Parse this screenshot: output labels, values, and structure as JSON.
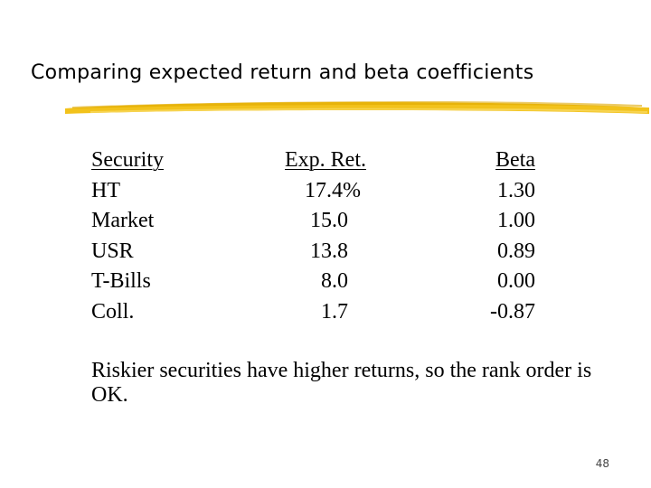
{
  "slide": {
    "title": "Comparing expected return and beta coefficients",
    "accent_color": "#f2c21b",
    "page_number": "48"
  },
  "table": {
    "headers": {
      "security": "Security",
      "expected_return": "Exp. Ret.",
      "beta": "Beta"
    },
    "rows": [
      {
        "security": "HT",
        "expected_return": "17.4%",
        "beta": "1.30"
      },
      {
        "security": "Market",
        "expected_return": "15.0",
        "beta": "1.00"
      },
      {
        "security": "USR",
        "expected_return": "13.8",
        "beta": "0.89"
      },
      {
        "security": "T-Bills",
        "expected_return": "8.0",
        "beta": "0.00"
      },
      {
        "security": "Coll.",
        "expected_return": "1.7",
        "beta": "-0.87"
      }
    ]
  },
  "note": "Riskier securities have higher returns, so the rank order is OK."
}
